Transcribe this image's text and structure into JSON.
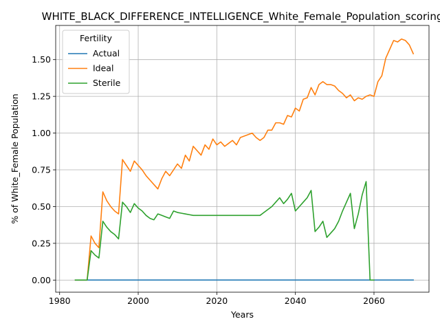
{
  "chart_data": {
    "type": "line",
    "title": "WHITE_BLACK_DIFFERENCE_INTELLIGENCE_White_Female_Population_scoring",
    "xlabel": "Years",
    "ylabel": "% of White_Female Population",
    "xlim": [
      1979,
      2074
    ],
    "ylim": [
      -0.0825,
      1.7325
    ],
    "xticks": [
      1980,
      2000,
      2020,
      2040,
      2060
    ],
    "yticks": [
      0.0,
      0.25,
      0.5,
      0.75,
      1.0,
      1.25,
      1.5
    ],
    "ytick_labels": [
      "0.00",
      "0.25",
      "0.50",
      "0.75",
      "1.00",
      "1.25",
      "1.50"
    ],
    "grid": true,
    "legend": {
      "title": "Fertility",
      "placement": "top-left"
    },
    "series": [
      {
        "name": "Actual",
        "color": "#1f77b4",
        "x": [
          1984,
          2070
        ],
        "y": [
          0.0,
          0.0
        ]
      },
      {
        "name": "Ideal",
        "color": "#ff7f0e",
        "x": [
          1984,
          1985,
          1986,
          1987,
          1988,
          1989,
          1990,
          1991,
          1992,
          1993,
          1994,
          1995,
          1996,
          1997,
          1998,
          1999,
          2000,
          2001,
          2002,
          2003,
          2004,
          2005,
          2006,
          2007,
          2008,
          2009,
          2010,
          2011,
          2012,
          2013,
          2014,
          2015,
          2016,
          2017,
          2018,
          2019,
          2020,
          2021,
          2022,
          2023,
          2024,
          2025,
          2026,
          2027,
          2028,
          2029,
          2030,
          2031,
          2032,
          2033,
          2034,
          2035,
          2036,
          2037,
          2038,
          2039,
          2040,
          2041,
          2042,
          2043,
          2044,
          2045,
          2046,
          2047,
          2048,
          2049,
          2050,
          2051,
          2052,
          2053,
          2054,
          2055,
          2056,
          2057,
          2058,
          2059,
          2060,
          2061,
          2062,
          2063,
          2064,
          2065,
          2066,
          2067,
          2068,
          2069,
          2070
        ],
        "y": [
          0.0,
          0.0,
          0.0,
          0.0,
          0.3,
          0.25,
          0.22,
          0.6,
          0.54,
          0.5,
          0.47,
          0.45,
          0.82,
          0.78,
          0.74,
          0.81,
          0.78,
          0.75,
          0.71,
          0.68,
          0.65,
          0.62,
          0.69,
          0.74,
          0.71,
          0.75,
          0.79,
          0.76,
          0.85,
          0.81,
          0.91,
          0.88,
          0.85,
          0.92,
          0.89,
          0.96,
          0.92,
          0.94,
          0.91,
          0.93,
          0.95,
          0.92,
          0.97,
          0.98,
          0.99,
          1.0,
          0.97,
          0.95,
          0.97,
          1.02,
          1.02,
          1.07,
          1.07,
          1.06,
          1.12,
          1.11,
          1.17,
          1.15,
          1.23,
          1.24,
          1.31,
          1.26,
          1.33,
          1.35,
          1.33,
          1.33,
          1.32,
          1.29,
          1.27,
          1.24,
          1.26,
          1.22,
          1.24,
          1.23,
          1.25,
          1.26,
          1.25,
          1.35,
          1.39,
          1.51,
          1.57,
          1.63,
          1.62,
          1.64,
          1.63,
          1.6,
          1.54
        ]
      },
      {
        "name": "Sterile",
        "color": "#2ca02c",
        "x": [
          1984,
          1985,
          1986,
          1987,
          1988,
          1989,
          1990,
          1991,
          1992,
          1993,
          1994,
          1995,
          1996,
          1997,
          1998,
          1999,
          2000,
          2001,
          2002,
          2003,
          2004,
          2005,
          2006,
          2007,
          2008,
          2009,
          2010,
          2011,
          2012,
          2013,
          2014,
          2015,
          2016,
          2017,
          2018,
          2019,
          2020,
          2021,
          2022,
          2023,
          2024,
          2025,
          2026,
          2027,
          2028,
          2029,
          2030,
          2031,
          2032,
          2033,
          2034,
          2035,
          2036,
          2037,
          2038,
          2039,
          2040,
          2041,
          2042,
          2043,
          2044,
          2045,
          2046,
          2047,
          2048,
          2049,
          2050,
          2051,
          2052,
          2053,
          2054,
          2055,
          2056,
          2057,
          2058,
          2059,
          2060
        ],
        "y": [
          0.0,
          0.0,
          0.0,
          0.0,
          0.2,
          0.17,
          0.15,
          0.4,
          0.36,
          0.33,
          0.31,
          0.28,
          0.53,
          0.5,
          0.46,
          0.52,
          0.49,
          0.47,
          0.44,
          0.42,
          0.41,
          0.45,
          0.44,
          0.43,
          0.42,
          0.47,
          0.46,
          0.455,
          0.45,
          0.445,
          0.44,
          0.44,
          0.44,
          0.44,
          0.44,
          0.44,
          0.44,
          0.44,
          0.44,
          0.44,
          0.44,
          0.44,
          0.44,
          0.44,
          0.44,
          0.44,
          0.44,
          0.44,
          0.46,
          0.48,
          0.5,
          0.53,
          0.56,
          0.52,
          0.55,
          0.59,
          0.47,
          0.5,
          0.53,
          0.56,
          0.61,
          0.33,
          0.36,
          0.4,
          0.29,
          0.32,
          0.35,
          0.4,
          0.47,
          0.53,
          0.59,
          0.35,
          0.45,
          0.58,
          0.67,
          0.0,
          0.0
        ]
      }
    ]
  }
}
